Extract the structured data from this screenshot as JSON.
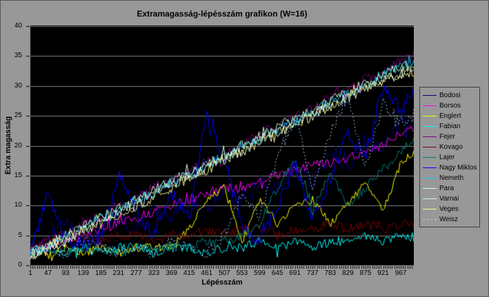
{
  "chart_data": {
    "type": "line",
    "title": "Extramagasság-lépésszám grafikon (W=16)",
    "xlabel": "Lépésszám",
    "ylabel": "Extra magasság",
    "xlim": [
      1,
      1001
    ],
    "ylim": [
      0,
      40
    ],
    "x_ticks": [
      1,
      47,
      93,
      139,
      185,
      231,
      277,
      323,
      369,
      415,
      461,
      507,
      553,
      599,
      645,
      691,
      737,
      783,
      829,
      875,
      921,
      967
    ],
    "y_ticks": [
      0,
      5,
      10,
      15,
      20,
      25,
      30,
      35,
      40
    ],
    "grid": "horizontal gridlines every 5 units",
    "legend_position": "right",
    "chart_bg": "#989898",
    "plot_bg": "#000000",
    "gridline_color": "#848484",
    "sample_x": [
      1,
      47,
      93,
      139,
      185,
      231,
      277,
      323,
      369,
      415,
      461,
      507,
      553,
      599,
      645,
      691,
      737,
      783,
      829,
      875,
      921,
      967,
      1001
    ],
    "series": [
      {
        "name": "Bodosi",
        "color": "#000080",
        "dash": false,
        "noise": 1.3,
        "values": [
          3,
          5,
          7,
          4,
          6,
          8,
          6,
          9,
          8,
          11,
          9,
          12,
          11,
          14,
          13,
          16,
          14,
          18,
          16,
          21,
          19,
          24,
          23
        ]
      },
      {
        "name": "Borsos",
        "color": "#FF00FF",
        "dash": false,
        "noise": 0.8,
        "values": [
          2,
          3,
          4,
          5,
          6,
          7,
          8,
          9,
          10,
          11,
          12,
          13,
          13,
          14,
          15,
          16,
          17,
          17,
          18,
          19,
          20,
          22,
          23
        ]
      },
      {
        "name": "Englert",
        "color": "#FFFF00",
        "dash": false,
        "noise": 0.7,
        "values": [
          2,
          2,
          3,
          2,
          3,
          2,
          3,
          3,
          3,
          6,
          11,
          13,
          4,
          11,
          7,
          10,
          11,
          7,
          10,
          14,
          9,
          17,
          19
        ]
      },
      {
        "name": "Fabian",
        "color": "#00FFFF",
        "dash": false,
        "noise": 0.8,
        "values": [
          2,
          3,
          2,
          3,
          2,
          3,
          3,
          2,
          3,
          3,
          2,
          3,
          3,
          4,
          3,
          4,
          3,
          4,
          4,
          5,
          4,
          5,
          4
        ]
      },
      {
        "name": "Fejer",
        "color": "#800080",
        "dash": false,
        "noise": 1.0,
        "values": [
          2,
          4,
          5,
          7,
          8,
          10,
          11,
          13,
          14,
          16,
          17,
          19,
          20,
          22,
          23,
          25,
          26,
          28,
          29,
          31,
          32,
          34,
          35
        ]
      },
      {
        "name": "Kovago",
        "color": "#800000",
        "dash": false,
        "noise": 0.8,
        "values": [
          3,
          4,
          4,
          5,
          4,
          5,
          5,
          4,
          5,
          5,
          6,
          5,
          6,
          6,
          5,
          6,
          6,
          7,
          6,
          7,
          6,
          7,
          7
        ]
      },
      {
        "name": "Lajer",
        "color": "#008080",
        "dash": false,
        "noise": 0.8,
        "values": [
          2,
          3,
          2,
          3,
          3,
          2,
          3,
          3,
          3,
          3,
          4,
          4,
          5,
          7,
          13,
          18,
          9,
          16,
          10,
          13,
          16,
          19,
          21
        ]
      },
      {
        "name": "Nagy Miklos",
        "color": "#0000FF",
        "dash": false,
        "noise": 1.2,
        "values": [
          2,
          12,
          4,
          3,
          5,
          15,
          9,
          5,
          12,
          8,
          25,
          18,
          6,
          4,
          10,
          17,
          8,
          14,
          22,
          18,
          30,
          26,
          29
        ]
      },
      {
        "name": "Nemeth",
        "color": "#00CCFF",
        "dash": false,
        "noise": 0.9,
        "values": [
          2,
          3,
          5,
          6,
          8,
          9,
          11,
          12,
          14,
          15,
          17,
          18,
          20,
          21,
          23,
          24,
          26,
          27,
          29,
          30,
          32,
          33,
          34
        ]
      },
      {
        "name": "Para",
        "color": "#CCFFFF",
        "dash": false,
        "noise": 0.9,
        "values": [
          1.5,
          3,
          4,
          6,
          7,
          9,
          10,
          12,
          13,
          15,
          16,
          18,
          19,
          21,
          22,
          24,
          25,
          27,
          28,
          30,
          31,
          32,
          33
        ]
      },
      {
        "name": "Varnai",
        "color": "#CCFFCC",
        "dash": false,
        "noise": 0.9,
        "values": [
          2,
          3.5,
          5,
          6.5,
          8,
          9.5,
          11,
          12.5,
          14,
          15.5,
          17,
          18.5,
          20,
          21.5,
          23,
          24.5,
          26,
          27.5,
          29,
          30.5,
          32,
          33,
          33.5
        ]
      },
      {
        "name": "Veges",
        "color": "#FFFF99",
        "dash": false,
        "noise": 0.9,
        "values": [
          1.5,
          3,
          4.5,
          6,
          7,
          8.5,
          10,
          11.5,
          13,
          14.5,
          16,
          17.5,
          19,
          20.5,
          22,
          23.5,
          25,
          26.5,
          28,
          29.5,
          31,
          32,
          32.5
        ]
      },
      {
        "name": "Weisz",
        "color": "#99CCFF",
        "dash": true,
        "noise": 1.0,
        "values": [
          2,
          3,
          2,
          4,
          3,
          2,
          3,
          2,
          4,
          3,
          2,
          5,
          12,
          8,
          18,
          25,
          13,
          22,
          28,
          16,
          27,
          24,
          25
        ]
      }
    ]
  }
}
